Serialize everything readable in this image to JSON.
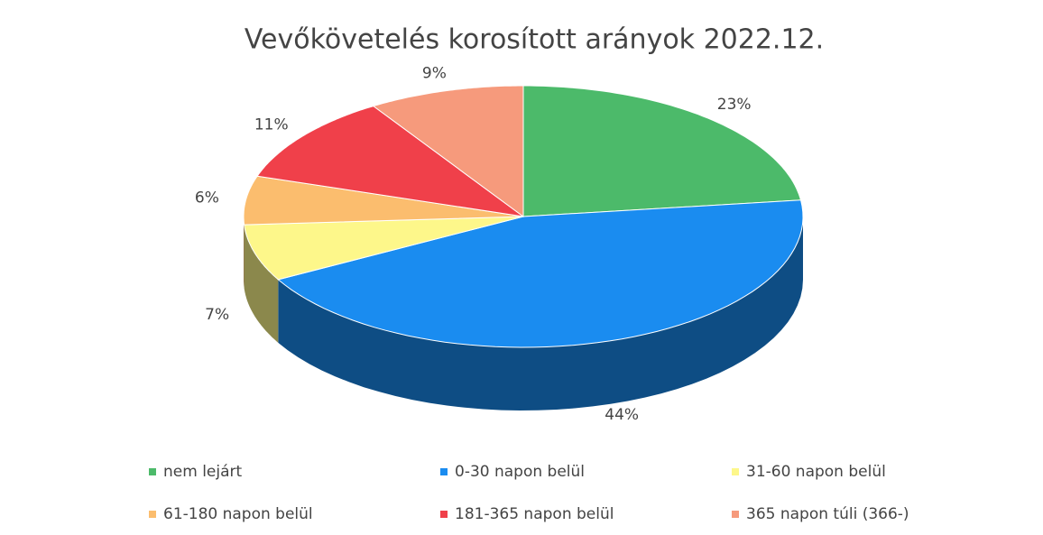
{
  "chart_data": {
    "type": "pie",
    "title": "Vevőkövetelés korosított arányok 2022.12.",
    "categories": [
      "nem lejárt",
      "0-30 napon belül",
      "31-60 napon belül",
      "61-180 napon belül",
      "181-365 napon belül",
      "365 napon túli (366-)"
    ],
    "values": [
      23,
      44,
      7,
      6,
      11,
      9
    ],
    "value_labels": [
      "23%",
      "44%",
      "7%",
      "6%",
      "11%",
      "9%"
    ],
    "colors": [
      "#4cba6a",
      "#1a8cf0",
      "#fdf78a",
      "#fbbd6e",
      "#f0404a",
      "#f69a7c"
    ],
    "legend": "bottom"
  }
}
